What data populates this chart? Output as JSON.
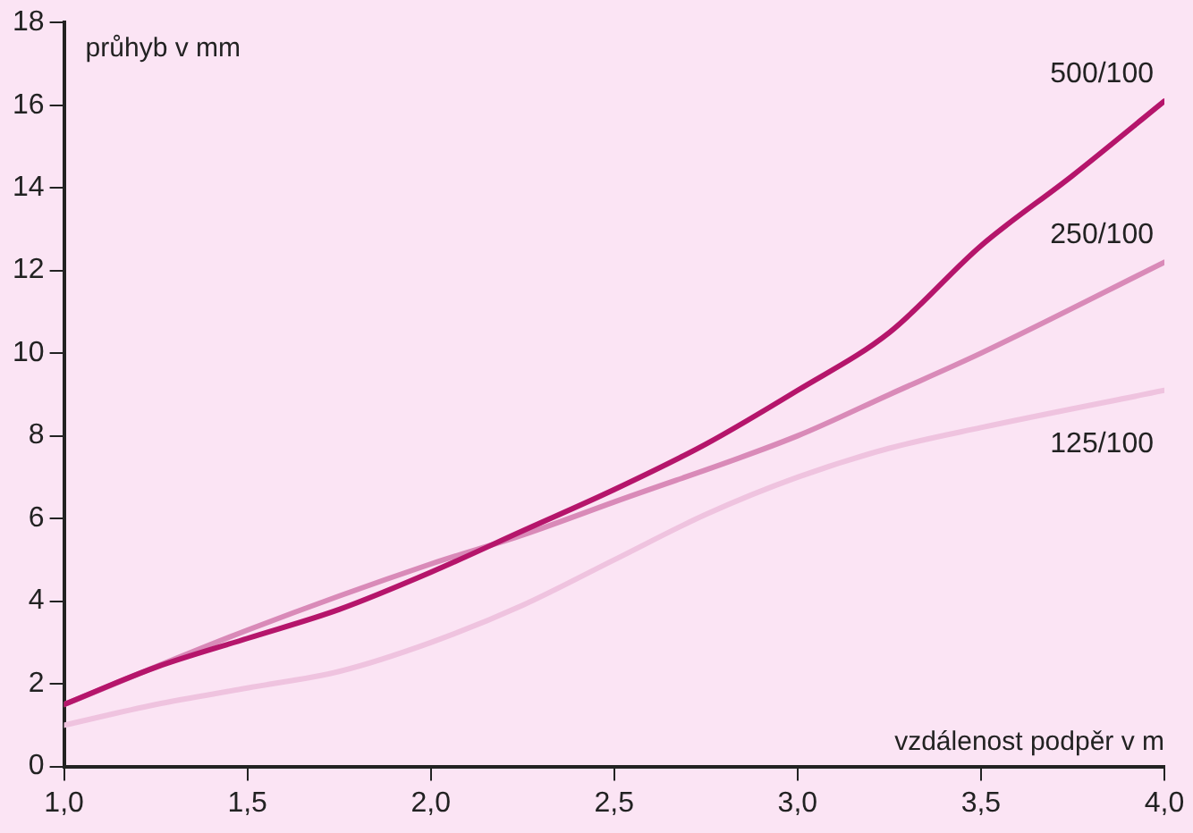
{
  "chart_data": {
    "type": "line",
    "xlabel": "vzdálenost podpěr v m",
    "ylabel": "průhyb v mm",
    "xlim": [
      1.0,
      4.0
    ],
    "ylim": [
      0,
      18
    ],
    "xticks": [
      {
        "value": 1.0,
        "label": "1,0"
      },
      {
        "value": 1.5,
        "label": "1,5"
      },
      {
        "value": 2.0,
        "label": "2,0"
      },
      {
        "value": 2.5,
        "label": "2,5"
      },
      {
        "value": 3.0,
        "label": "3,0"
      },
      {
        "value": 3.5,
        "label": "3,5"
      },
      {
        "value": 4.0,
        "label": "4,0"
      }
    ],
    "yticks": [
      0,
      2,
      4,
      6,
      8,
      10,
      12,
      14,
      16,
      18
    ],
    "grid": false,
    "legend": false,
    "marker": "none",
    "line_style": "solid",
    "series": [
      {
        "name": "500/100",
        "color": "#b5156b",
        "x": [
          1.0,
          1.25,
          1.5,
          1.75,
          2.0,
          2.25,
          2.5,
          2.75,
          3.0,
          3.25,
          3.5,
          3.75,
          4.0
        ],
        "values": [
          1.5,
          2.4,
          3.1,
          3.8,
          4.7,
          5.7,
          6.7,
          7.8,
          9.1,
          10.5,
          12.6,
          14.3,
          16.1
        ]
      },
      {
        "name": "250/100",
        "color": "#d98ab8",
        "x": [
          1.0,
          1.5,
          2.0,
          2.25,
          2.5,
          3.0,
          3.25,
          3.5,
          4.0
        ],
        "values": [
          1.5,
          3.3,
          4.9,
          5.6,
          6.4,
          8.0,
          9.0,
          10.0,
          12.2
        ]
      },
      {
        "name": "125/100",
        "color": "#efc3df",
        "x": [
          1.0,
          1.25,
          1.5,
          1.75,
          2.0,
          2.25,
          2.5,
          2.75,
          3.0,
          3.25,
          3.5,
          4.0
        ],
        "values": [
          1.0,
          1.5,
          1.9,
          2.3,
          3.0,
          3.9,
          5.0,
          6.1,
          7.0,
          7.7,
          8.2,
          9.1
        ]
      }
    ]
  }
}
